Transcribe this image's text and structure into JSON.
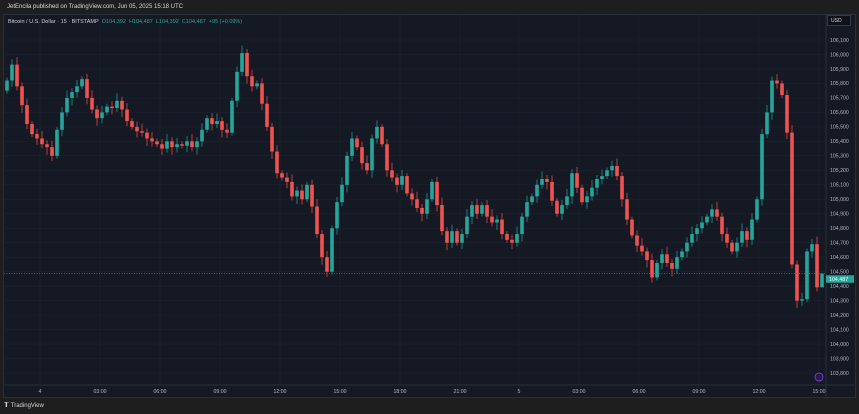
{
  "header": {
    "published_text": "JetEncila published on TradingView.com, Jun 05, 2025 15:18 UTC"
  },
  "legend": {
    "symbol": "Bitcoin / U.S. Dollar · 15 · BITSTAMP",
    "open": "O104,392",
    "high": "H104,487",
    "low": "L104,392",
    "close": "C104,487",
    "change": "+95 (+0.09%)"
  },
  "currency_button": "USD",
  "footer": {
    "brand": "TradingView",
    "logo_text": "TV"
  },
  "colors": {
    "up": "#26a69a",
    "down": "#ef5350",
    "background": "#151924",
    "grid": "#1f2330"
  },
  "chart_data": {
    "type": "candlestick",
    "title": "Bitcoin / U.S. Dollar · 15 · BITSTAMP",
    "interval": "15",
    "ylim": [
      103750,
      106150
    ],
    "y_ticks": [
      "106,100",
      "106,000",
      "105,900",
      "105,800",
      "105,700",
      "105,600",
      "105,500",
      "105,400",
      "105,300",
      "105,200",
      "105,100",
      "105,000",
      "104,900",
      "104,800",
      "104,700",
      "104,600",
      "104,500",
      "104,400",
      "104,300",
      "104,200",
      "104,100",
      "104,000",
      "103,900",
      "103,800"
    ],
    "x_ticks": [
      "4",
      "03:00",
      "06:00",
      "09:00",
      "12:00",
      "15:00",
      "18:00",
      "21:00",
      "5",
      "03:00",
      "06:00",
      "09:00",
      "12:00",
      "15:00"
    ],
    "last_price": 104487,
    "last_price_label": "104,487",
    "grid": true,
    "first_open": 105750,
    "closes": [
      105820,
      105930,
      105780,
      105650,
      105520,
      105450,
      105420,
      105380,
      105360,
      105300,
      105480,
      105600,
      105700,
      105740,
      105780,
      105830,
      105700,
      105620,
      105560,
      105600,
      105640,
      105630,
      105680,
      105620,
      105540,
      105500,
      105470,
      105460,
      105420,
      105400,
      105380,
      105350,
      105400,
      105360,
      105380,
      105370,
      105400,
      105360,
      105400,
      105480,
      105560,
      105520,
      105540,
      105480,
      105460,
      105680,
      105880,
      106010,
      105850,
      105780,
      105800,
      105660,
      105500,
      105330,
      105180,
      105150,
      105120,
      105020,
      105060,
      105000,
      105100,
      104950,
      104760,
      104600,
      104500,
      104800,
      104980,
      105100,
      105300,
      105420,
      105360,
      105250,
      105200,
      105420,
      105500,
      105380,
      105200,
      105150,
      105100,
      105160,
      105040,
      105000,
      104940,
      104900,
      105000,
      105120,
      104960,
      104780,
      104700,
      104780,
      104700,
      104760,
      104880,
      104960,
      104900,
      104960,
      104880,
      104840,
      104860,
      104760,
      104720,
      104700,
      104760,
      104880,
      104980,
      105020,
      105100,
      105140,
      105120,
      104990,
      104900,
      104960,
      105020,
      105180,
      105080,
      104980,
      105020,
      105080,
      105140,
      105160,
      105200,
      105230,
      105160,
      105000,
      104860,
      104750,
      104680,
      104640,
      104580,
      104460,
      104560,
      104620,
      104560,
      104520,
      104600,
      104640,
      104700,
      104760,
      104800,
      104840,
      104880,
      104930,
      104880,
      104760,
      104700,
      104640,
      104700,
      104780,
      104720,
      104860,
      105000,
      105450,
      105600,
      105820,
      105800,
      105720,
      105460,
      104550,
      104300,
      104310,
      104640,
      104690,
      104392,
      104487
    ],
    "last_candle": {
      "open": 104392,
      "high": 104487,
      "low": 104392,
      "close": 104487
    }
  }
}
